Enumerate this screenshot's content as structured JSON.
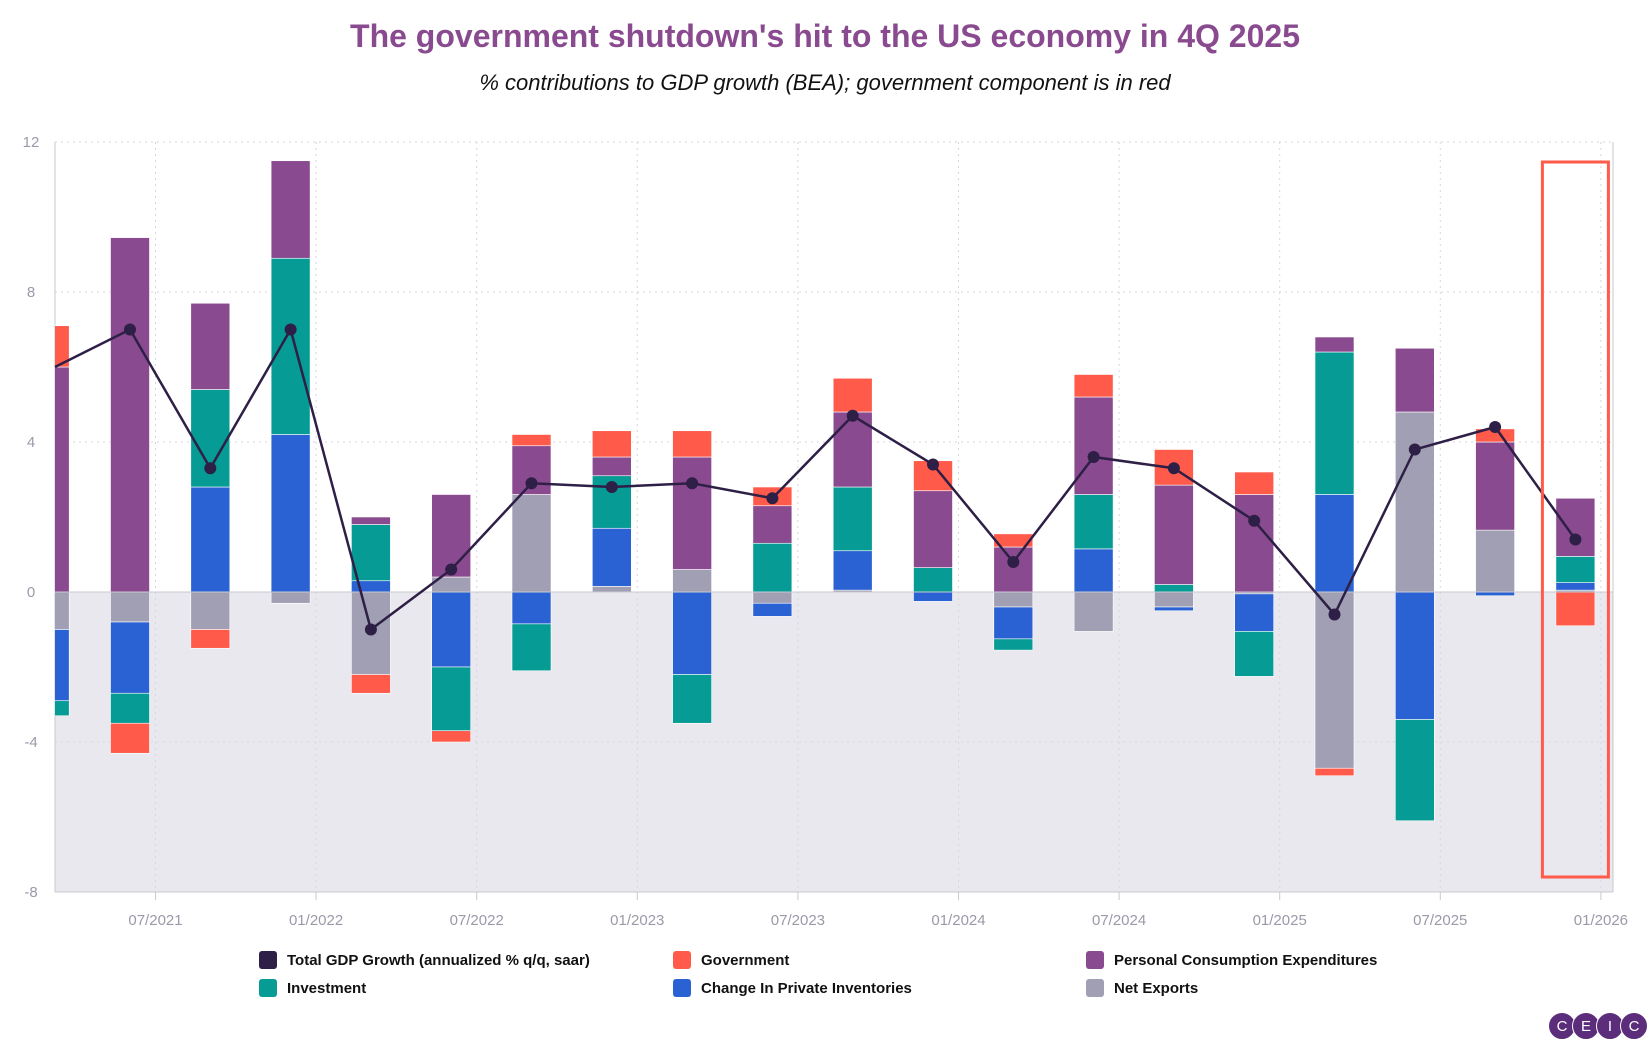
{
  "chart_data": {
    "type": "bar",
    "stacked": true,
    "title": "The government shutdown's hit to the US economy in 4Q 2025",
    "subtitle": "% contributions to GDP growth (BEA); government component is in red",
    "categories": [
      "1Q 2021",
      "2Q 2021",
      "3Q 2021",
      "4Q 2021",
      "1Q 2022",
      "2Q 2022",
      "3Q 2022",
      "4Q 2022",
      "1Q 2023",
      "2Q 2023",
      "3Q 2023",
      "4Q 2023",
      "1Q 2024",
      "2Q 2024",
      "3Q 2024",
      "4Q 2024",
      "1Q 2025",
      "2Q 2025",
      "3Q 2025",
      "4Q 2025"
    ],
    "x_tick_labels": [
      "07/2021",
      "01/2022",
      "07/2022",
      "01/2023",
      "07/2023",
      "01/2024",
      "07/2024",
      "01/2025",
      "07/2025",
      "01/2026"
    ],
    "y_ticks": [
      12,
      8,
      4,
      0,
      -4,
      -8
    ],
    "ylim": [
      -8,
      12
    ],
    "grid": true,
    "legend_placement": "bottom",
    "highlight": "4Q 2025",
    "series": [
      {
        "name": "Net Exports",
        "color": "#a19fb3",
        "values": [
          -1.0,
          -0.8,
          -1.0,
          -0.3,
          -2.2,
          0.4,
          2.6,
          0.15,
          0.6,
          -0.3,
          0.05,
          0,
          -0.4,
          -1.05,
          -0.4,
          -0.05,
          -4.7,
          4.8,
          1.65,
          0.05
        ]
      },
      {
        "name": "Change In Private Inventories",
        "color": "#2b62d3",
        "values": [
          -1.9,
          -1.9,
          2.8,
          4.2,
          0.3,
          -2.0,
          -0.85,
          1.55,
          -2.2,
          -0.35,
          1.05,
          -0.25,
          -0.85,
          1.15,
          -0.1,
          -1.0,
          2.6,
          -3.4,
          -0.1,
          0.2
        ]
      },
      {
        "name": "Investment",
        "color": "#069b94",
        "values": [
          -0.4,
          -0.8,
          2.6,
          4.7,
          1.5,
          -1.7,
          -1.25,
          1.4,
          -1.3,
          1.3,
          1.7,
          0.65,
          -0.3,
          1.45,
          0.2,
          -1.2,
          3.8,
          -2.7,
          0,
          0.7
        ]
      },
      {
        "name": "Personal Consumption Expenditures",
        "color": "#8a4a8f",
        "values": [
          6.0,
          9.45,
          2.3,
          2.6,
          0.2,
          2.2,
          1.3,
          0.5,
          3.0,
          1.0,
          2.0,
          2.05,
          1.2,
          2.6,
          2.65,
          2.6,
          0.4,
          1.7,
          2.35,
          1.55
        ]
      },
      {
        "name": "Government",
        "color": "#ff5a4a",
        "values": [
          1.1,
          -0.8,
          -0.5,
          0,
          -0.5,
          -0.3,
          0.3,
          0.7,
          0.7,
          0.5,
          0.9,
          0.8,
          0.35,
          0.6,
          0.95,
          0.6,
          -0.2,
          0,
          0.35,
          -0.9
        ]
      }
    ],
    "line": {
      "name": "Total GDP Growth (annualized % q/q, saar)",
      "color": "#2e1f47",
      "values": [
        6.0,
        7.0,
        3.3,
        7.0,
        -1.0,
        0.6,
        2.9,
        2.8,
        2.9,
        2.5,
        4.7,
        3.4,
        0.8,
        3.6,
        3.3,
        1.9,
        -0.6,
        3.8,
        4.4,
        1.4
      ]
    },
    "legend_order": [
      "Total GDP Growth (annualized % q/q, saar)",
      "Government",
      "Personal Consumption Expenditures",
      "Investment",
      "Change In Private Inventories",
      "Net Exports"
    ],
    "colors": {
      "title": "#8a4a8f",
      "negative_area": "#e9e8ee",
      "highlight_box": "#ff5a4a"
    }
  },
  "logo": {
    "letters": [
      "C",
      "E",
      "I",
      "C"
    ]
  }
}
